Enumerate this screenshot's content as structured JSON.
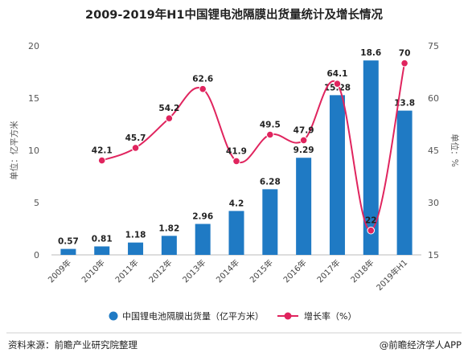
{
  "chart_data": {
    "type": "bar",
    "title": "2009-2019年H1中国锂电池隔膜出货量统计及增长情况",
    "categories": [
      "2009年",
      "2010年",
      "2011年",
      "2012年",
      "2013年",
      "2014年",
      "2015年",
      "2016年",
      "2017年",
      "2018年",
      "2019年H1"
    ],
    "series": [
      {
        "name": "中国锂电池隔膜出货量（亿平方米）",
        "type": "bar",
        "axis": "left",
        "color": "#1f7ac4",
        "values": [
          0.57,
          0.81,
          1.18,
          1.82,
          2.96,
          4.2,
          6.28,
          9.29,
          15.28,
          18.6,
          13.8
        ]
      },
      {
        "name": "增长率（%）",
        "type": "line",
        "axis": "right",
        "color": "#e0245e",
        "values": [
          null,
          42.1,
          45.7,
          54.2,
          62.6,
          41.9,
          49.5,
          47.9,
          64.1,
          22,
          70
        ]
      }
    ],
    "ylabel_left": "单位：亿平方米",
    "ylabel_right": "单位：%",
    "ylim_left": [
      0,
      20
    ],
    "yticks_left": [
      0,
      5,
      10,
      15,
      20
    ],
    "ylim_right": [
      15,
      75
    ],
    "yticks_right": [
      15,
      30,
      45,
      60,
      75
    ],
    "grid": false,
    "legend_position": "bottom"
  },
  "footer": {
    "source": "资料来源：前瞻产业研究院整理",
    "brand": "@前瞻经济学人APP"
  }
}
